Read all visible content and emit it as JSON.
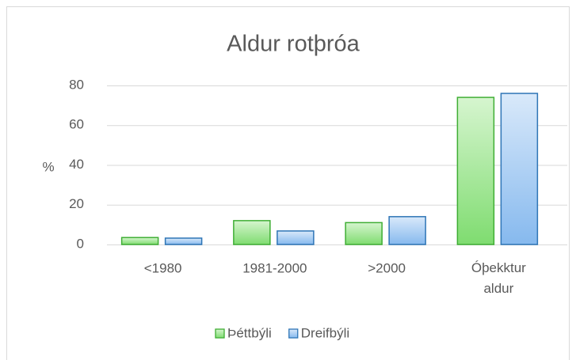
{
  "chart_data": {
    "type": "bar",
    "title": "Aldur rotþróa",
    "ylabel": "%",
    "categories": [
      "<1980",
      "1981-2000",
      ">2000",
      "Óþekktur aldur"
    ],
    "series": [
      {
        "name": "Þéttbýli",
        "color": "#3fae34",
        "values": [
          3.5,
          12,
          11,
          74
        ]
      },
      {
        "name": "Dreifbýli",
        "color": "#2e75b6",
        "values": [
          3.2,
          6.8,
          14,
          76
        ]
      }
    ],
    "ylim": [
      0,
      80
    ],
    "yticks": [
      0,
      20,
      40,
      60,
      80
    ],
    "grid": true,
    "legend": "bottom"
  }
}
